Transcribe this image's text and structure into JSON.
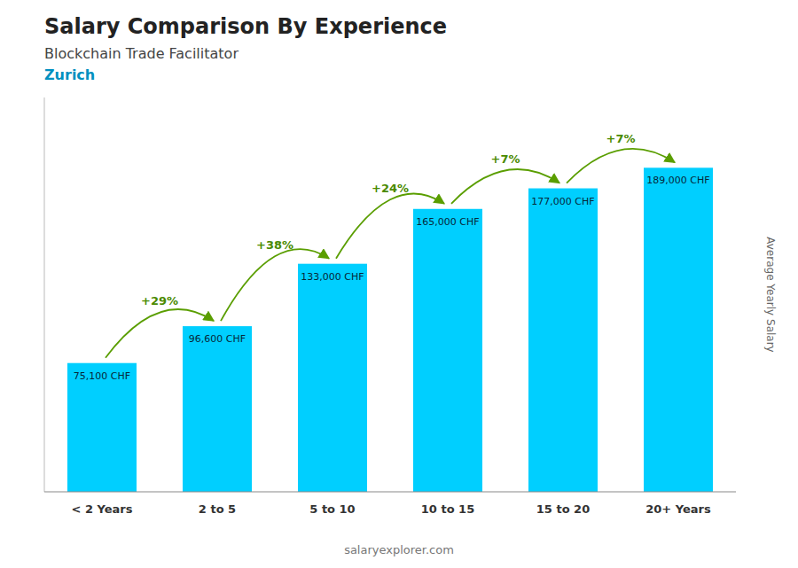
{
  "chart_data": {
    "type": "bar",
    "title": "Salary Comparison By Experience",
    "subtitle": "Blockchain Trade Facilitator",
    "city": "Zurich",
    "ylabel": "Average Yearly Salary",
    "watermark": "salaryexplorer.com",
    "categories": [
      "< 2 Years",
      "2 to 5",
      "5 to 10",
      "10 to 15",
      "15 to 20",
      "20+ Years"
    ],
    "values": [
      75100,
      96600,
      133000,
      165000,
      177000,
      189000
    ],
    "value_labels": [
      "75,100 CHF",
      "96,600 CHF",
      "133,000 CHF",
      "165,000 CHF",
      "177,000 CHF",
      "189,000 CHF"
    ],
    "data_labels": true,
    "annotations": [
      "+29%",
      "+38%",
      "+24%",
      "+7%",
      "+7%"
    ],
    "color": "#00cfff",
    "ylim": [
      0,
      230000
    ],
    "yticks": [],
    "tick_labels": "x"
  }
}
